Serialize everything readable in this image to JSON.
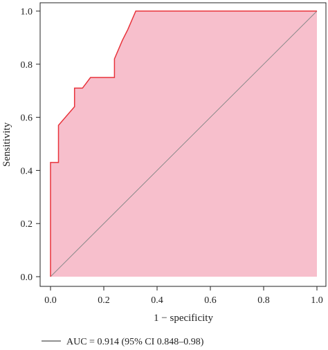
{
  "chart_data": {
    "type": "area",
    "xlabel": "1 − specificity",
    "ylabel": "Sensitivity",
    "xlim": [
      0,
      1
    ],
    "ylim": [
      0,
      1
    ],
    "x_ticks": [
      "0.0",
      "0.2",
      "0.4",
      "0.6",
      "0.8",
      "1.0"
    ],
    "y_ticks": [
      "0.0",
      "0.2",
      "0.4",
      "0.6",
      "0.8",
      "1.0"
    ],
    "grid": false,
    "series": [
      {
        "name": "AUC = 0.914 (95% CI 0.848–0.98)",
        "x": [
          0.0,
          0.0,
          0.03,
          0.03,
          0.09,
          0.09,
          0.12,
          0.15,
          0.24,
          0.24,
          0.27,
          0.29,
          0.32,
          0.32,
          1.0
        ],
        "y": [
          0.0,
          0.43,
          0.43,
          0.57,
          0.64,
          0.71,
          0.71,
          0.75,
          0.75,
          0.82,
          0.89,
          0.93,
          1.0,
          1.0,
          1.0
        ]
      }
    ],
    "reference_line": {
      "x": [
        0,
        1
      ],
      "y": [
        0,
        1
      ]
    },
    "legend_placement": "bottom-left",
    "colors": {
      "fill": "#f7bfcc",
      "curve": "#e8323a",
      "diagonal": "#8a8a8a",
      "axis": "#222222"
    }
  }
}
